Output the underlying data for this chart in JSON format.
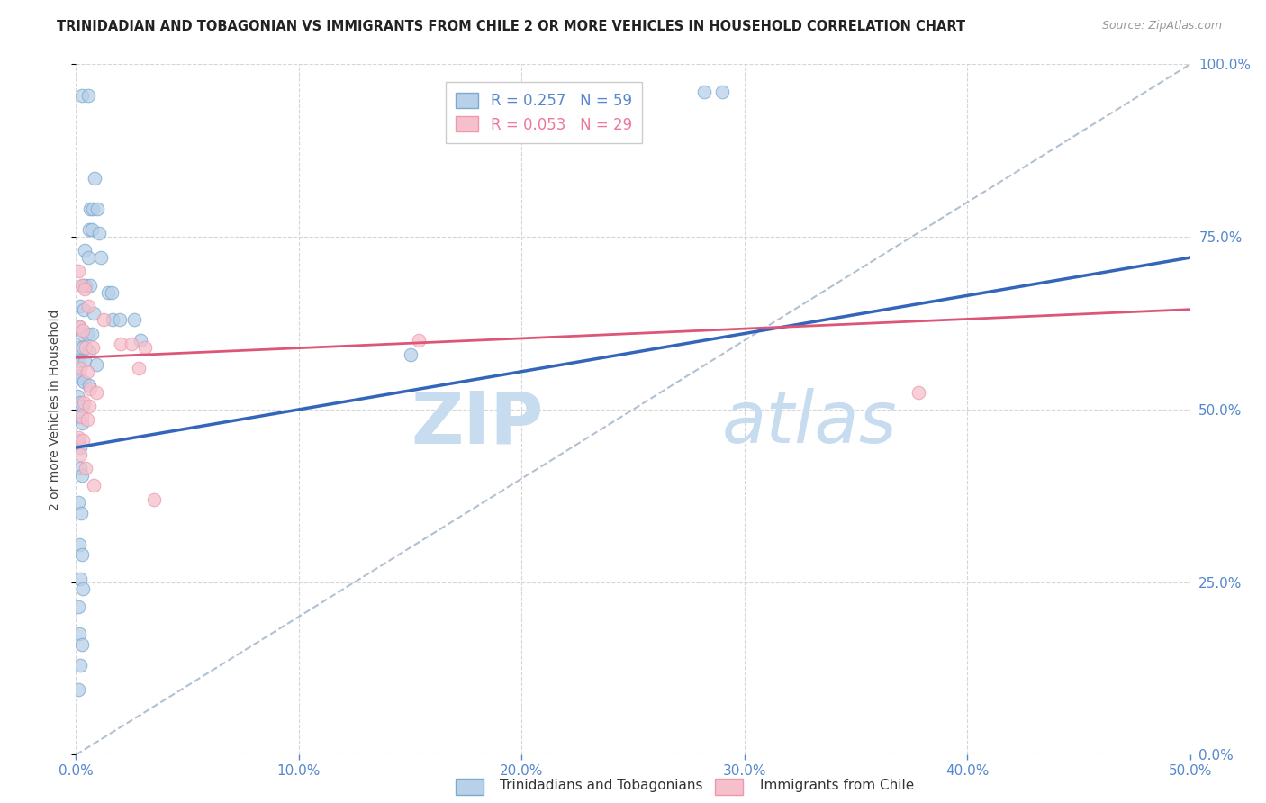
{
  "title": "TRINIDADIAN AND TOBAGONIAN VS IMMIGRANTS FROM CHILE 2 OR MORE VEHICLES IN HOUSEHOLD CORRELATION CHART",
  "source": "Source: ZipAtlas.com",
  "xlabel_ticks": [
    "0.0%",
    "10.0%",
    "20.0%",
    "30.0%",
    "40.0%",
    "50.0%"
  ],
  "xlabel_vals": [
    0.0,
    0.1,
    0.2,
    0.3,
    0.4,
    0.5
  ],
  "ylabel": "2 or more Vehicles in Household",
  "ylabel_ticks": [
    "0.0%",
    "25.0%",
    "50.0%",
    "75.0%",
    "100.0%"
  ],
  "ylabel_vals": [
    0.0,
    0.25,
    0.5,
    0.75,
    1.0
  ],
  "xlim": [
    0.0,
    0.5
  ],
  "ylim": [
    0.0,
    1.0
  ],
  "legend_label1": "R = 0.257   N = 59",
  "legend_label2": "R = 0.053   N = 29",
  "legend_color1": "#5588CC",
  "legend_color2": "#EE7799",
  "watermark_zip": "ZIP",
  "watermark_atlas": "atlas",
  "blue_scatter": [
    [
      0.0025,
      0.955
    ],
    [
      0.0055,
      0.955
    ],
    [
      0.0085,
      0.835
    ],
    [
      0.0065,
      0.79
    ],
    [
      0.0075,
      0.79
    ],
    [
      0.0095,
      0.79
    ],
    [
      0.006,
      0.76
    ],
    [
      0.007,
      0.76
    ],
    [
      0.0105,
      0.755
    ],
    [
      0.004,
      0.73
    ],
    [
      0.0055,
      0.72
    ],
    [
      0.011,
      0.72
    ],
    [
      0.003,
      0.68
    ],
    [
      0.0045,
      0.68
    ],
    [
      0.0065,
      0.68
    ],
    [
      0.002,
      0.65
    ],
    [
      0.0035,
      0.645
    ],
    [
      0.008,
      0.64
    ],
    [
      0.0015,
      0.62
    ],
    [
      0.0025,
      0.61
    ],
    [
      0.005,
      0.61
    ],
    [
      0.007,
      0.61
    ],
    [
      0.001,
      0.59
    ],
    [
      0.003,
      0.59
    ],
    [
      0.006,
      0.585
    ],
    [
      0.0015,
      0.57
    ],
    [
      0.004,
      0.57
    ],
    [
      0.009,
      0.565
    ],
    [
      0.001,
      0.55
    ],
    [
      0.002,
      0.545
    ],
    [
      0.0035,
      0.54
    ],
    [
      0.006,
      0.535
    ],
    [
      0.0008,
      0.52
    ],
    [
      0.0018,
      0.51
    ],
    [
      0.003,
      0.505
    ],
    [
      0.0015,
      0.49
    ],
    [
      0.0025,
      0.48
    ],
    [
      0.001,
      0.455
    ],
    [
      0.002,
      0.445
    ],
    [
      0.0018,
      0.415
    ],
    [
      0.0028,
      0.405
    ],
    [
      0.0012,
      0.365
    ],
    [
      0.0022,
      0.35
    ],
    [
      0.0015,
      0.305
    ],
    [
      0.0025,
      0.29
    ],
    [
      0.0018,
      0.255
    ],
    [
      0.003,
      0.24
    ],
    [
      0.0012,
      0.215
    ],
    [
      0.0015,
      0.175
    ],
    [
      0.0025,
      0.16
    ],
    [
      0.002,
      0.13
    ],
    [
      0.001,
      0.095
    ],
    [
      0.0145,
      0.67
    ],
    [
      0.016,
      0.67
    ],
    [
      0.0165,
      0.63
    ],
    [
      0.0195,
      0.63
    ],
    [
      0.026,
      0.63
    ],
    [
      0.029,
      0.6
    ],
    [
      0.15,
      0.58
    ],
    [
      0.282,
      0.96
    ],
    [
      0.29,
      0.96
    ]
  ],
  "pink_scatter": [
    [
      0.001,
      0.7
    ],
    [
      0.0025,
      0.68
    ],
    [
      0.004,
      0.675
    ],
    [
      0.0055,
      0.65
    ],
    [
      0.0015,
      0.62
    ],
    [
      0.003,
      0.615
    ],
    [
      0.0045,
      0.59
    ],
    [
      0.0075,
      0.59
    ],
    [
      0.002,
      0.56
    ],
    [
      0.005,
      0.555
    ],
    [
      0.0065,
      0.53
    ],
    [
      0.009,
      0.525
    ],
    [
      0.0035,
      0.51
    ],
    [
      0.006,
      0.505
    ],
    [
      0.0025,
      0.49
    ],
    [
      0.005,
      0.485
    ],
    [
      0.001,
      0.46
    ],
    [
      0.003,
      0.455
    ],
    [
      0.002,
      0.435
    ],
    [
      0.0045,
      0.415
    ],
    [
      0.008,
      0.39
    ],
    [
      0.0125,
      0.63
    ],
    [
      0.02,
      0.595
    ],
    [
      0.025,
      0.595
    ],
    [
      0.028,
      0.56
    ],
    [
      0.031,
      0.59
    ],
    [
      0.035,
      0.37
    ],
    [
      0.154,
      0.6
    ],
    [
      0.378,
      0.525
    ]
  ],
  "blue_line_x": [
    0.0,
    0.5
  ],
  "blue_line_y": [
    0.445,
    0.72
  ],
  "pink_line_x": [
    0.0,
    0.5
  ],
  "pink_line_y": [
    0.575,
    0.645
  ],
  "diag_line_x": [
    0.0,
    0.5
  ],
  "diag_line_y": [
    0.0,
    1.0
  ],
  "scatter_blue_face": "#B8D0E8",
  "scatter_blue_edge": "#7AAAD0",
  "scatter_pink_face": "#F5C0CC",
  "scatter_pink_edge": "#EE99AA",
  "grid_color": "#CCCCCC",
  "line_blue_color": "#3366BB",
  "line_pink_color": "#DD5577",
  "diag_color": "#AABBCC",
  "bottom_legend_blue_label": "Trinidadians and Tobagonians",
  "bottom_legend_pink_label": "Immigrants from Chile"
}
